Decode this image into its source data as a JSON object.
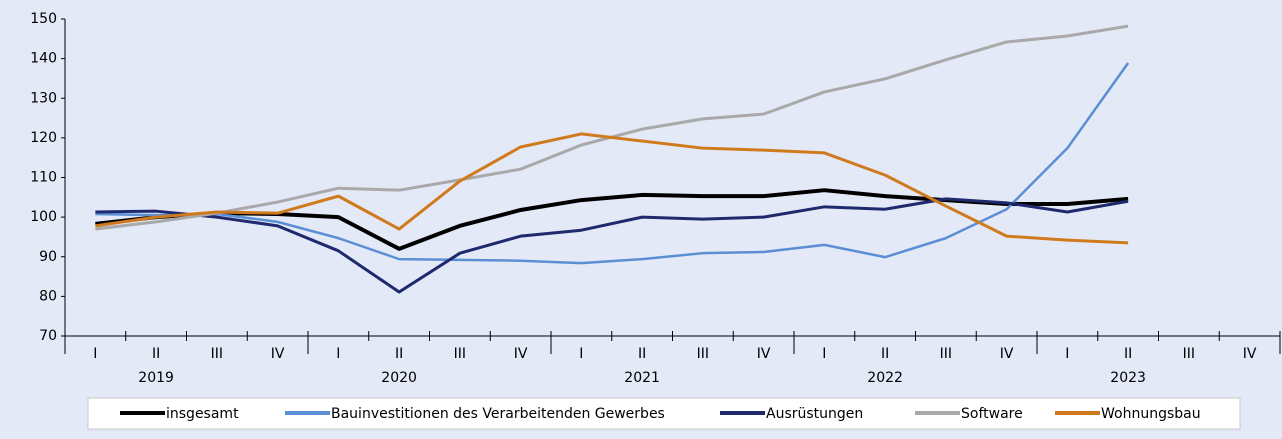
{
  "chart_data": {
    "type": "line",
    "categories": [
      "I",
      "II",
      "III",
      "IV",
      "I",
      "II",
      "III",
      "IV",
      "I",
      "II",
      "III",
      "IV",
      "I",
      "II",
      "III",
      "IV",
      "I",
      "II",
      "III",
      "IV"
    ],
    "years": [
      "2019",
      "2020",
      "2021",
      "2022",
      "2023"
    ],
    "ylim": [
      70,
      150
    ],
    "yticks": [
      70,
      80,
      90,
      100,
      110,
      120,
      130,
      140,
      150
    ],
    "grid": false,
    "legend": "bottom",
    "series": [
      {
        "name": "insgesamt",
        "color": "#000000",
        "width": 4,
        "values": [
          98.3,
          100,
          101,
          100.8,
          100,
          92,
          97.8,
          101.8,
          104.3,
          105.6,
          105.3,
          105.3,
          106.8,
          105.3,
          104.3,
          103.3,
          103.3,
          104.6,
          null,
          null
        ]
      },
      {
        "name": "Bauinvestitionen des Verarbeitenden Gewerbes",
        "color": "#5b8fd4",
        "width": 2.5,
        "values": [
          100.8,
          100.5,
          100.8,
          98.8,
          94.7,
          89.4,
          89.2,
          89,
          88.4,
          89.4,
          90.9,
          91.2,
          93,
          89.9,
          94.7,
          102,
          117.4,
          138.9,
          null,
          null
        ]
      },
      {
        "name": "Ausrüstungen",
        "color": "#1f2a6e",
        "width": 3,
        "values": [
          101.3,
          101.5,
          100,
          97.8,
          91.5,
          81.1,
          90.9,
          95.2,
          96.7,
          100,
          99.5,
          100,
          102.6,
          102,
          104.6,
          103.6,
          101.3,
          104,
          null,
          null
        ]
      },
      {
        "name": "Software",
        "color": "#a9a9a9",
        "width": 3,
        "values": [
          97,
          98.8,
          101,
          103.8,
          107.3,
          106.8,
          109.4,
          112.1,
          118.2,
          122.2,
          124.8,
          126,
          131.6,
          134.9,
          139.7,
          144.2,
          145.7,
          148.2,
          null,
          null
        ]
      },
      {
        "name": "Wohnungsbau",
        "color": "#d07a1e",
        "width": 3,
        "values": [
          97.8,
          100,
          101.3,
          101,
          105.3,
          97,
          109.1,
          117.7,
          121,
          119.2,
          117.4,
          116.9,
          116.2,
          110.6,
          102.8,
          95.2,
          94.2,
          93.5,
          null,
          null
        ]
      }
    ]
  }
}
